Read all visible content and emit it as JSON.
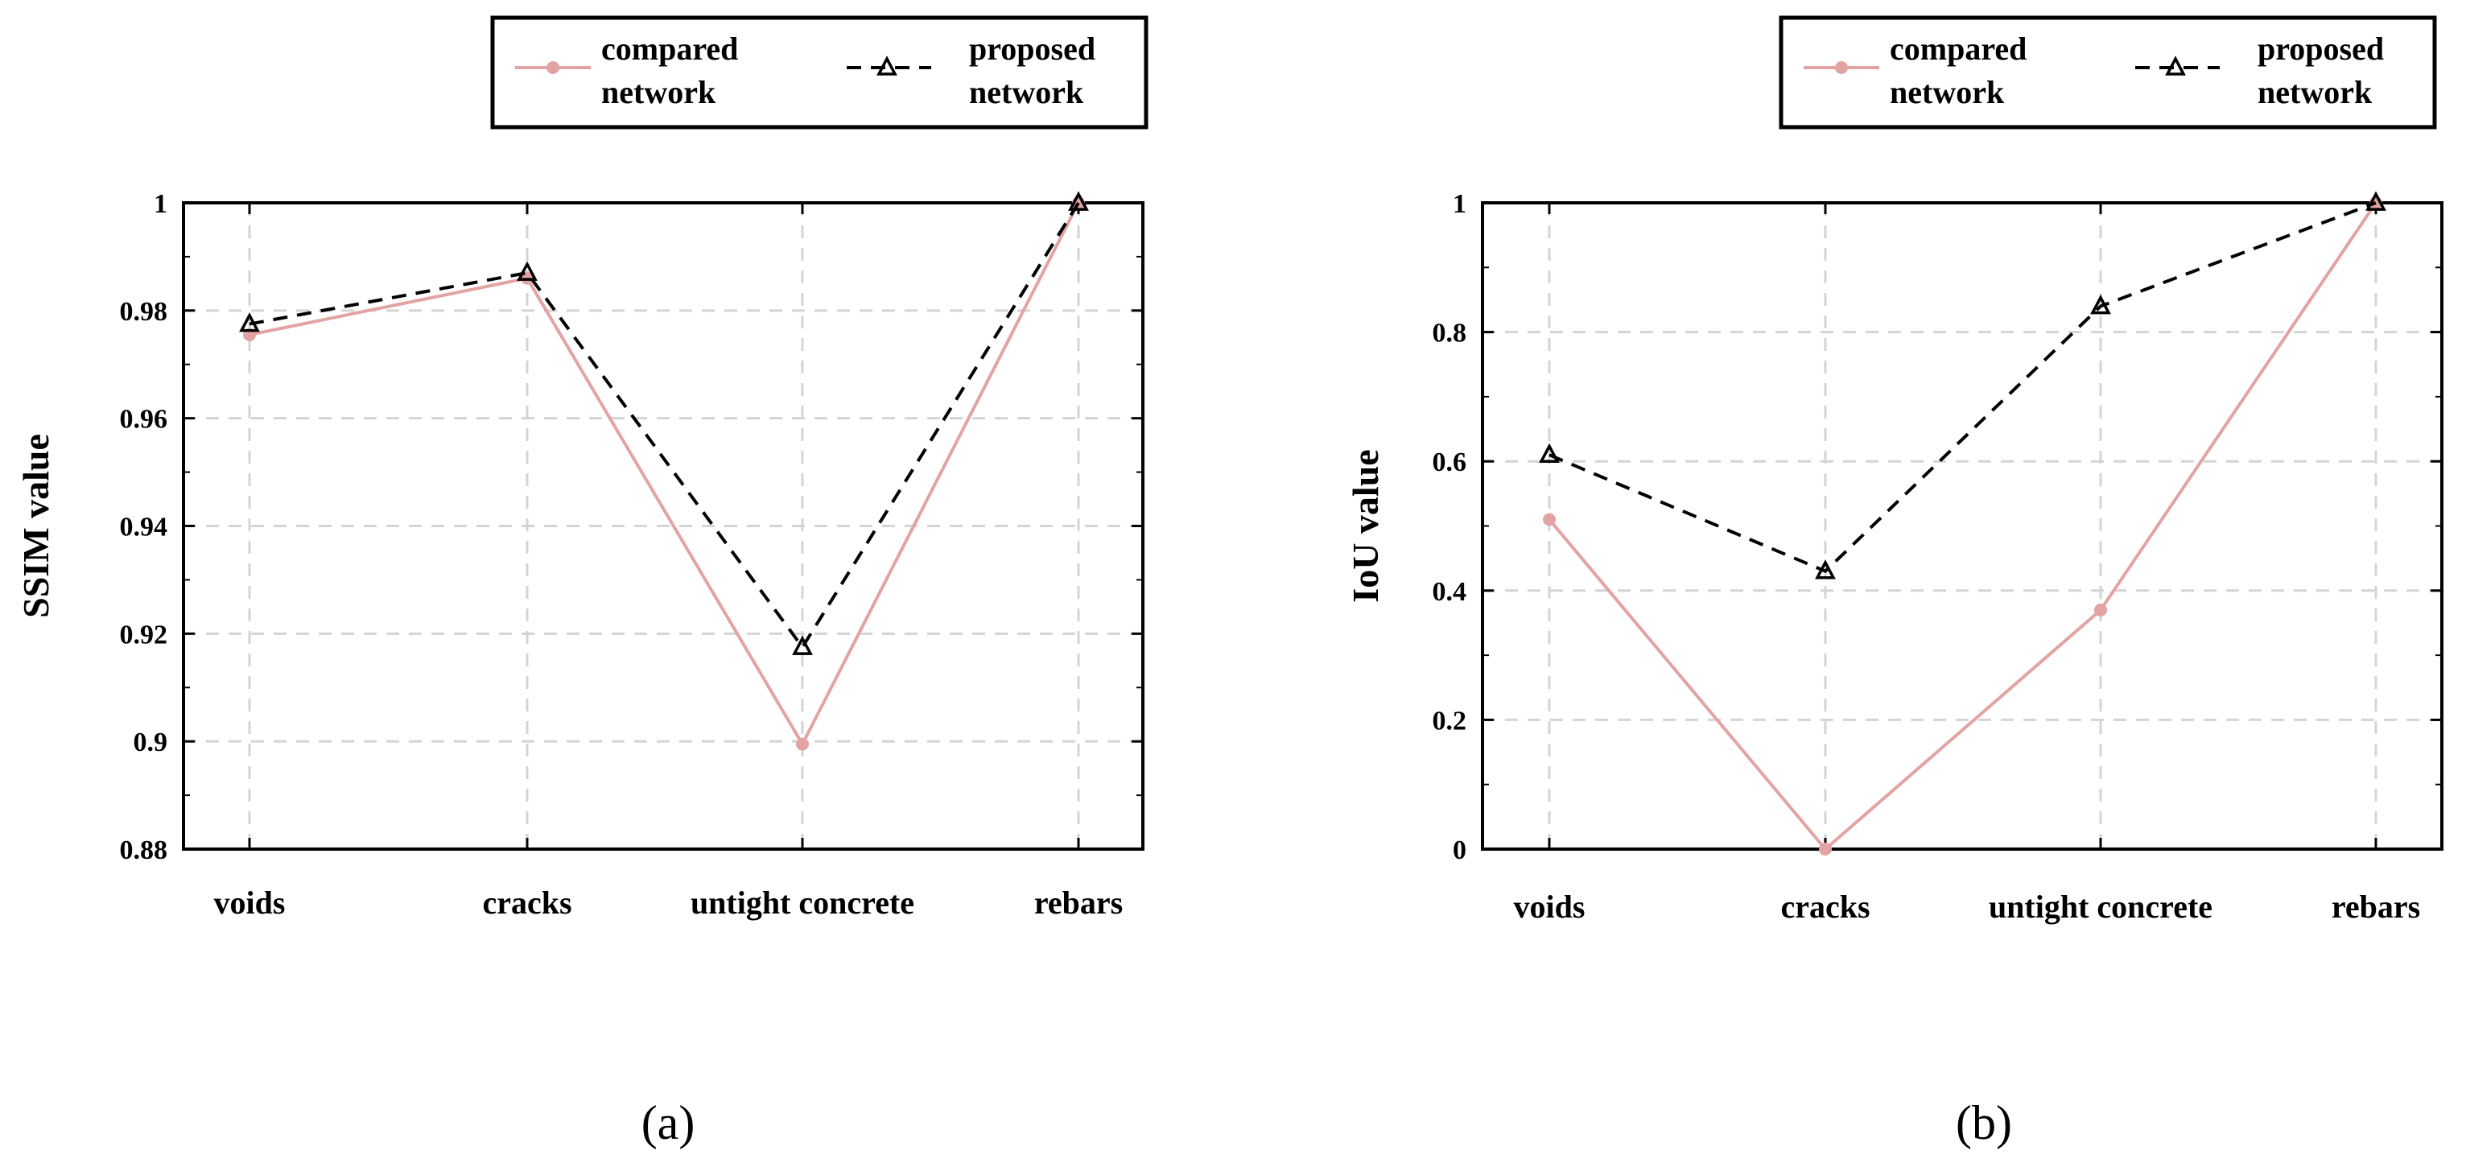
{
  "chart_data": [
    {
      "type": "line",
      "panel_label": "(a)",
      "categories": [
        "voids",
        "cracks",
        "untight concrete",
        "rebars"
      ],
      "ylabel": "SSIM value",
      "ylim": [
        0.88,
        1.0
      ],
      "yticks": [
        0.88,
        0.9,
        0.92,
        0.94,
        0.96,
        0.98,
        1.0
      ],
      "ytick_labels": [
        "0.88",
        "0.9",
        "0.92",
        "0.94",
        "0.96",
        "0.98",
        "1"
      ],
      "grid": true,
      "legend_position": "top-right-above",
      "series": [
        {
          "name_line1": "compared",
          "name_line2": "network",
          "style": "solid-pink-dot",
          "color": "#e3a3a3",
          "values": [
            0.9755,
            0.986,
            0.8995,
            1.0
          ]
        },
        {
          "name_line1": "proposed",
          "name_line2": "network",
          "style": "dashed-black-triangle",
          "color": "#000000",
          "values": [
            0.9775,
            0.987,
            0.9175,
            1.0
          ]
        }
      ]
    },
    {
      "type": "line",
      "panel_label": "(b)",
      "categories": [
        "voids",
        "cracks",
        "untight concrete",
        "rebars"
      ],
      "ylabel": "IoU value",
      "ylim": [
        0,
        1
      ],
      "yticks": [
        0,
        0.2,
        0.4,
        0.6,
        0.8,
        1
      ],
      "ytick_labels": [
        "0",
        "0.2",
        "0.4",
        "0.6",
        "0.8",
        "1"
      ],
      "grid": true,
      "legend_position": "top-right-above",
      "series": [
        {
          "name_line1": "compared",
          "name_line2": "network",
          "style": "solid-pink-dot",
          "color": "#e3a3a3",
          "values": [
            0.51,
            0.0,
            0.37,
            1.0
          ]
        },
        {
          "name_line1": "proposed",
          "name_line2": "network",
          "style": "dashed-black-triangle",
          "color": "#000000",
          "values": [
            0.61,
            0.43,
            0.84,
            1.0
          ]
        }
      ]
    }
  ]
}
